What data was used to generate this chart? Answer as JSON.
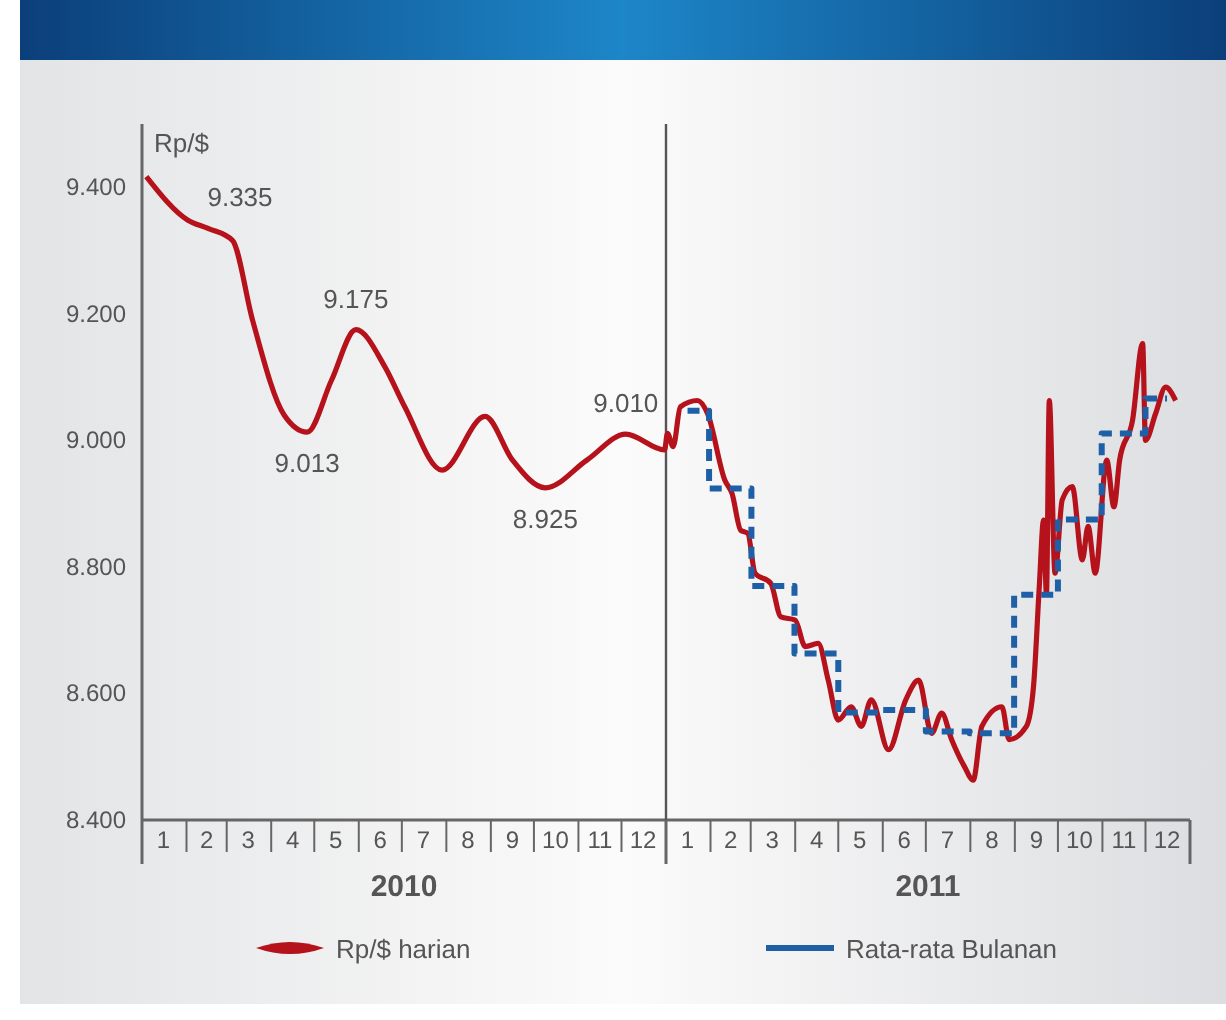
{
  "chart_data": {
    "type": "line",
    "ylabel": "Rp/$",
    "xlim": [
      "2010-01-01",
      "2012-01-01"
    ],
    "ylim": [
      8400,
      9500
    ],
    "xticks": [
      {
        "value": "2010-01-16",
        "label": "1"
      },
      {
        "value": "2010-02-15",
        "label": "2"
      },
      {
        "value": "2010-03-16",
        "label": "3"
      },
      {
        "value": "2010-04-16",
        "label": "4"
      },
      {
        "value": "2010-05-16",
        "label": "5"
      },
      {
        "value": "2010-06-16",
        "label": "6"
      },
      {
        "value": "2010-07-16",
        "label": "7"
      },
      {
        "value": "2010-08-16",
        "label": "8"
      },
      {
        "value": "2010-09-16",
        "label": "9"
      },
      {
        "value": "2010-10-16",
        "label": "10"
      },
      {
        "value": "2010-11-16",
        "label": "11"
      },
      {
        "value": "2010-12-16",
        "label": "12"
      },
      {
        "value": "2011-01-16",
        "label": "1"
      },
      {
        "value": "2011-02-15",
        "label": "2"
      },
      {
        "value": "2011-03-16",
        "label": "3"
      },
      {
        "value": "2011-04-16",
        "label": "4"
      },
      {
        "value": "2011-05-16",
        "label": "5"
      },
      {
        "value": "2011-06-16",
        "label": "6"
      },
      {
        "value": "2011-07-16",
        "label": "7"
      },
      {
        "value": "2011-08-16",
        "label": "8"
      },
      {
        "value": "2011-09-16",
        "label": "9"
      },
      {
        "value": "2011-10-16",
        "label": "10"
      },
      {
        "value": "2011-11-16",
        "label": "11"
      },
      {
        "value": "2011-12-16",
        "label": "12"
      }
    ],
    "yticks": [
      {
        "value": 8400,
        "label": "8.400"
      },
      {
        "value": 8600,
        "label": "8.600"
      },
      {
        "value": 8800,
        "label": "8.800"
      },
      {
        "value": 9000,
        "label": "9.000"
      },
      {
        "value": 9200,
        "label": "9.200"
      },
      {
        "value": 9400,
        "label": "9.400"
      }
    ],
    "series": [
      {
        "name": "Rp/$ harian",
        "color": "#b5121b",
        "x": [
          "2010-01-04",
          "2010-02-02",
          "2010-02-16",
          "2010-03-05",
          "2010-03-19",
          "2010-04-10",
          "2010-04-26",
          "2010-05-13",
          "2010-05-30",
          "2010-06-19",
          "2010-07-03",
          "2010-07-29",
          "2010-08-28",
          "2010-09-16",
          "2010-10-09",
          "2010-11-07",
          "2010-12-04",
          "2010-12-31",
          "2011-01-02",
          "2011-01-06",
          "2011-01-11",
          "2011-01-23",
          "2011-01-30",
          "2011-02-11",
          "2011-02-16",
          "2011-02-22",
          "2011-02-27",
          "2011-03-04",
          "2011-03-15",
          "2011-03-22",
          "2011-04-01",
          "2011-04-08",
          "2011-04-17",
          "2011-04-24",
          "2011-05-01",
          "2011-05-10",
          "2011-05-17",
          "2011-05-24",
          "2011-06-05",
          "2011-06-17",
          "2011-06-26",
          "2011-07-05",
          "2011-07-12",
          "2011-07-19",
          "2011-07-28",
          "2011-08-03",
          "2011-08-09",
          "2011-08-23",
          "2011-08-28",
          "2011-09-09",
          "2011-09-14",
          "2011-09-18",
          "2011-09-21",
          "2011-09-23",
          "2011-09-25",
          "2011-09-29",
          "2011-10-04",
          "2011-10-11",
          "2011-10-18",
          "2011-10-22",
          "2011-10-27",
          "2011-11-04",
          "2011-11-09",
          "2011-11-13",
          "2011-11-22",
          "2011-11-29",
          "2011-12-01",
          "2011-12-08",
          "2011-12-15",
          "2011-12-22"
        ],
        "values": [
          9417,
          9348,
          9335,
          9316,
          9190,
          9040,
          9013,
          9095,
          9175,
          9117,
          9053,
          8953,
          9038,
          8969,
          8925,
          8969,
          9010,
          8985,
          9011,
          8990,
          9053,
          9063,
          9042,
          8937,
          8916,
          8858,
          8853,
          8790,
          8774,
          8721,
          8716,
          8674,
          8679,
          8621,
          8558,
          8579,
          8548,
          8590,
          8511,
          8590,
          8621,
          8537,
          8569,
          8527,
          8484,
          8463,
          8548,
          8579,
          8527,
          8548,
          8611,
          8768,
          8874,
          8758,
          9063,
          8790,
          8906,
          8927,
          8811,
          8864,
          8790,
          8969,
          8895,
          8969,
          9032,
          9153,
          9000,
          9042,
          9084,
          9063
        ]
      },
      {
        "name": "Rata-rata Bulanan",
        "type": "step",
        "color": "#1f5fa6",
        "line_style": "dashed",
        "x": [
          "2011-01-16",
          "2011-02-15",
          "2011-03-16",
          "2011-04-16",
          "2011-05-16",
          "2011-06-16",
          "2011-07-16",
          "2011-08-16",
          "2011-09-16",
          "2011-10-16",
          "2011-11-16",
          "2011-12-16"
        ],
        "values": [
          9047,
          8924,
          8770,
          8663,
          8570,
          8574,
          8540,
          8537,
          8756,
          8875,
          9011,
          9066
        ]
      }
    ],
    "ref_lines": [
      {
        "axis": "x",
        "value": "2011-01-01"
      }
    ],
    "annotations": [
      {
        "text": "9.335",
        "x": "2010-02-16",
        "y": 9335
      },
      {
        "text": "9.013",
        "x": "2010-04-26",
        "y": 9013
      },
      {
        "text": "9.175",
        "x": "2010-05-30",
        "y": 9175
      },
      {
        "text": "8.925",
        "x": "2010-10-09",
        "y": 8925
      },
      {
        "text": "9.010",
        "x": "2010-12-04",
        "y": 9010
      },
      "2010",
      "2011"
    ],
    "legend": "bottom"
  }
}
